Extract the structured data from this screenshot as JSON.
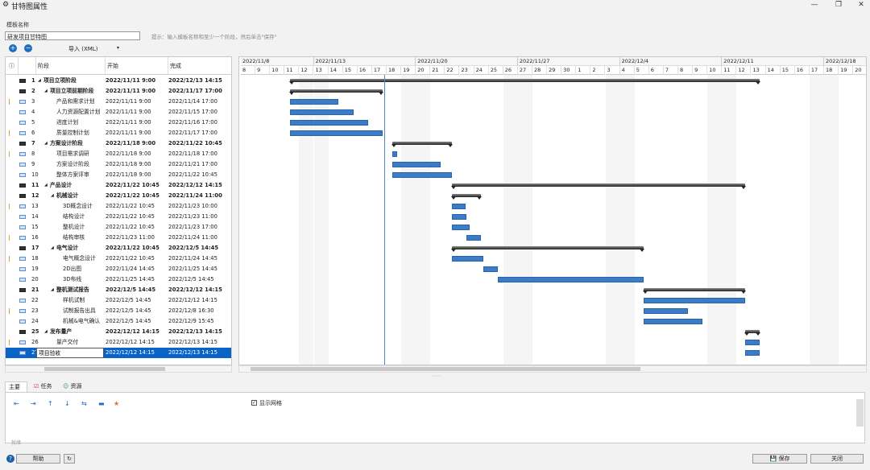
{
  "window": {
    "title": "甘特图属性"
  },
  "template_label": "模板名称",
  "template_name": "研发项目甘特图",
  "hint": "提示：输入模板名称和至少一个阶段，然后单击\"保存\"",
  "toolbar": {
    "import_label": "导入 (XML)"
  },
  "grid": {
    "headers": {
      "info": "ⓘ",
      "phase": "阶段",
      "start": "开始",
      "finish": "完成"
    },
    "rows": [
      {
        "id": "1",
        "name": "项目立项阶段",
        "start": "2022/11/11 9:00",
        "finish": "2022/12/13 14:15",
        "summary": true,
        "indent": 0
      },
      {
        "id": "2",
        "name": "项目立项前期阶段",
        "start": "2022/11/11 9:00",
        "finish": "2022/11/17 17:00",
        "summary": true,
        "indent": 1
      },
      {
        "id": "3",
        "name": "产品和需求计划",
        "start": "2022/11/11 9:00",
        "finish": "2022/11/14 17:00",
        "summary": false,
        "indent": 2
      },
      {
        "id": "4",
        "name": "人力资源配置计划",
        "start": "2022/11/11 9:00",
        "finish": "2022/11/15 17:00",
        "summary": false,
        "indent": 2
      },
      {
        "id": "5",
        "name": "进度计划",
        "start": "2022/11/11 9:00",
        "finish": "2022/11/16 17:00",
        "summary": false,
        "indent": 2
      },
      {
        "id": "6",
        "name": "质量控制计划",
        "start": "2022/11/11 9:00",
        "finish": "2022/11/17 17:00",
        "summary": false,
        "indent": 2
      },
      {
        "id": "7",
        "name": "方案设计阶段",
        "start": "2022/11/18 9:00",
        "finish": "2022/11/22 10:45",
        "summary": true,
        "indent": 1
      },
      {
        "id": "8",
        "name": "项目需求调研",
        "start": "2022/11/18 9:00",
        "finish": "2022/11/18 17:00",
        "summary": false,
        "indent": 2
      },
      {
        "id": "9",
        "name": "方案设计阶段",
        "start": "2022/11/18 9:00",
        "finish": "2022/11/21 17:00",
        "summary": false,
        "indent": 2
      },
      {
        "id": "10",
        "name": "整体方案评审",
        "start": "2022/11/18 9:00",
        "finish": "2022/11/22 10:45",
        "summary": false,
        "indent": 2
      },
      {
        "id": "11",
        "name": "产品设计",
        "start": "2022/11/22 10:45",
        "finish": "2022/12/12 14:15",
        "summary": true,
        "indent": 1
      },
      {
        "id": "12",
        "name": "机械设计",
        "start": "2022/11/22 10:45",
        "finish": "2022/11/24 11:00",
        "summary": true,
        "indent": 2
      },
      {
        "id": "13",
        "name": "3D概念设计",
        "start": "2022/11/22 10:45",
        "finish": "2022/11/23 10:00",
        "summary": false,
        "indent": 3
      },
      {
        "id": "14",
        "name": "结构设计",
        "start": "2022/11/22 10:45",
        "finish": "2022/11/23 11:00",
        "summary": false,
        "indent": 3
      },
      {
        "id": "15",
        "name": "整机设计",
        "start": "2022/11/22 10:45",
        "finish": "2022/11/23 17:00",
        "summary": false,
        "indent": 3
      },
      {
        "id": "16",
        "name": "结构审核",
        "start": "2022/11/23 11:00",
        "finish": "2022/11/24 11:00",
        "summary": false,
        "indent": 3
      },
      {
        "id": "17",
        "name": "电气设计",
        "start": "2022/11/22 10:45",
        "finish": "2022/12/5 14:45",
        "summary": true,
        "indent": 2
      },
      {
        "id": "18",
        "name": "电气概念设计",
        "start": "2022/11/22 10:45",
        "finish": "2022/11/24 14:45",
        "summary": false,
        "indent": 3
      },
      {
        "id": "19",
        "name": "2D出图",
        "start": "2022/11/24 14:45",
        "finish": "2022/11/25 14:45",
        "summary": false,
        "indent": 3
      },
      {
        "id": "20",
        "name": "3D布线",
        "start": "2022/11/25 14:45",
        "finish": "2022/12/5 14:45",
        "summary": false,
        "indent": 3
      },
      {
        "id": "21",
        "name": "整机测试报告",
        "start": "2022/12/5 14:45",
        "finish": "2022/12/12 14:15",
        "summary": true,
        "indent": 2
      },
      {
        "id": "22",
        "name": "样机试制",
        "start": "2022/12/5 14:45",
        "finish": "2022/12/12 14:15",
        "summary": false,
        "indent": 3
      },
      {
        "id": "23",
        "name": "试制报告出具",
        "start": "2022/12/5 14:45",
        "finish": "2022/12/8 16:30",
        "summary": false,
        "indent": 3
      },
      {
        "id": "24",
        "name": "机械&电气确认",
        "start": "2022/12/5 14:45",
        "finish": "2022/12/9 15:45",
        "summary": false,
        "indent": 3
      },
      {
        "id": "25",
        "name": "发布量产",
        "start": "2022/12/12 14:15",
        "finish": "2022/12/13 14:15",
        "summary": true,
        "indent": 1
      },
      {
        "id": "26",
        "name": "量产交付",
        "start": "2022/12/12 14:15",
        "finish": "2022/12/13 14:15",
        "summary": false,
        "indent": 2
      },
      {
        "id": "27",
        "name": "项目验收",
        "start": "2022/12/12 14:15",
        "finish": "2022/12/13 14:15",
        "summary": false,
        "indent": 2,
        "selected": true
      }
    ]
  },
  "timeline": {
    "weeks": [
      "2022/11/8",
      "2022/11/13",
      "2022/11/20",
      "2022/11/27",
      "2022/12/4",
      "2022/12/11",
      "2022/12/18"
    ],
    "days": [
      "8",
      "9",
      "10",
      "11",
      "12",
      "13",
      "14",
      "15",
      "16",
      "17",
      "18",
      "19",
      "20",
      "21",
      "22",
      "23",
      "24",
      "25",
      "26",
      "27",
      "28",
      "29",
      "30",
      "1",
      "2",
      "3",
      "4",
      "5",
      "6",
      "7",
      "8",
      "9",
      "10",
      "11",
      "12",
      "13",
      "14",
      "15",
      "16",
      "17",
      "18",
      "19",
      "20"
    ]
  },
  "bottom": {
    "tabs": [
      "主要",
      "任务",
      "资源"
    ],
    "show_grid_label": "显示网格",
    "show_grid_checked": true,
    "status": "就绪"
  },
  "buttons": {
    "help": "帮助",
    "save": "保存",
    "close": "关闭"
  },
  "colors": {
    "task_bar": "#3a7cc8",
    "summary_bar": "#222222",
    "selection": "#0a64c8"
  }
}
